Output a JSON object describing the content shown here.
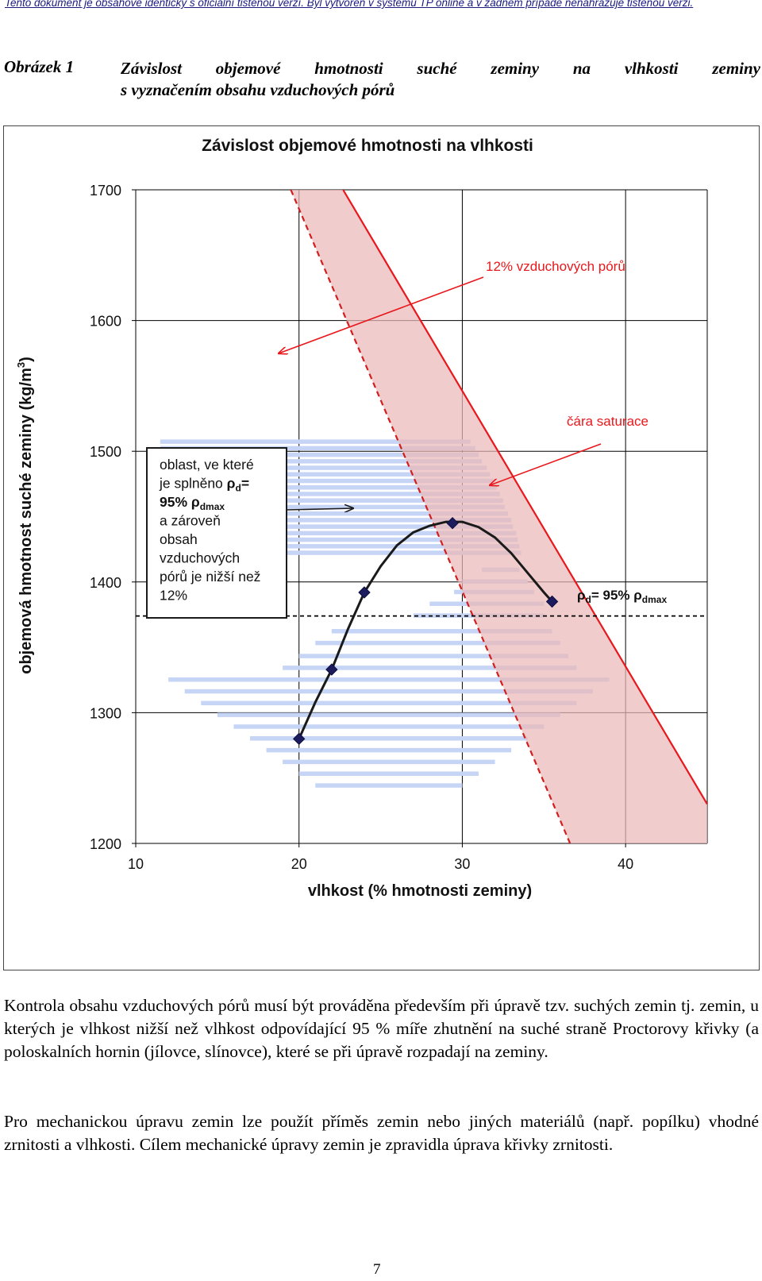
{
  "header": {
    "disclaimer": "Tento dokument je obsahově identický s oficiální tištěnou verzí. Byl vytvořen v systému TP online a v žádném případě nenahrazuje tištěnou verzi."
  },
  "figure": {
    "label": "Obrázek 1",
    "caption_line1": "Závislost objemové hmotnosti suché zeminy na vlhkosti zeminy",
    "caption_line2": "s vyznačením obsahu vzduchových pórů"
  },
  "chart_data": {
    "type": "scatter",
    "title": "Závislost objemové hmotnosti na vlhkosti",
    "xlabel": "vlhkost (% hmotnosti zeminy)",
    "ylabel": "objemová hmotnost suché zeminy (kg/m3)",
    "ylabel_main": "objemová hmotnost suché zeminy (kg/m",
    "ylabel_sup": "3",
    "ylabel_close": ")",
    "xlim": [
      10,
      45
    ],
    "ylim": [
      1200,
      1700
    ],
    "xticks": [
      10,
      20,
      30,
      40
    ],
    "yticks": [
      1200,
      1300,
      1400,
      1500,
      1600,
      1700
    ],
    "grid": true,
    "series": [
      {
        "values": [
          [
            20,
            1280
          ],
          [
            22,
            1333
          ],
          [
            24,
            1392
          ],
          [
            29.4,
            1445
          ],
          [
            35.5,
            1385
          ]
        ]
      }
    ],
    "curve": [
      [
        20,
        1280
      ],
      [
        21,
        1308
      ],
      [
        22,
        1333
      ],
      [
        23,
        1364
      ],
      [
        24,
        1392
      ],
      [
        25,
        1412
      ],
      [
        26,
        1428
      ],
      [
        27,
        1438
      ],
      [
        28,
        1443
      ],
      [
        29,
        1446
      ],
      [
        30,
        1446
      ],
      [
        31,
        1442
      ],
      [
        32,
        1434
      ],
      [
        33,
        1422
      ],
      [
        34,
        1407
      ],
      [
        35,
        1392
      ],
      [
        35.5,
        1385
      ]
    ],
    "saturation_line": [
      [
        22.7,
        1700
      ],
      [
        45,
        1230
      ]
    ],
    "air_voids_line": [
      [
        19.5,
        1700
      ],
      [
        36.6,
        1200
      ]
    ],
    "rho_95_level": 1374,
    "annotations": {
      "air_voids": "12% vzduchových pórů",
      "saturation": "čára saturace",
      "rho_label_main": "ρ",
      "rho_label_sub": "d",
      "rho_label_mid": "= 95% ρ",
      "rho_label_sub2": "dmax",
      "region_lines": [
        "oblast, ve které",
        "je splněno ",
        "95% ",
        "a zároveň",
        "obsah",
        "vzduchových",
        "pórů je nižší než",
        "12%"
      ],
      "region_rho": "ρ",
      "region_sub_d": "d",
      "region_eq": "=",
      "region_sub_dmax": "dmax"
    },
    "colors": {
      "band": "#eab8b8",
      "region": "#c6d4f5",
      "saturation": "#e8181c",
      "air_voids": "#d21e1e",
      "points": "#1b1b5e",
      "curve": "#1a1a1a"
    }
  },
  "body": {
    "paragraph1": "Kontrola obsahu vzduchových pórů musí být prováděna především při úpravě tzv. suchých zemin tj. zemin, u kterých je vlhkost nižší než vlhkost odpovídající 95 % míře zhutnění na suché straně Proctorovy křivky (a poloskalních hornin (jílovce, slínovce), které se při úpravě rozpadají na zeminy.",
    "paragraph2": "Pro mechanickou úpravu zemin lze použít příměs zemin nebo jiných materiálů (např. popílku) vhodné zrnitosti a vlhkosti. Cílem mechanické úpravy zemin je zpravidla úprava křivky zrnitosti."
  },
  "footer": {
    "page_number": "7"
  }
}
